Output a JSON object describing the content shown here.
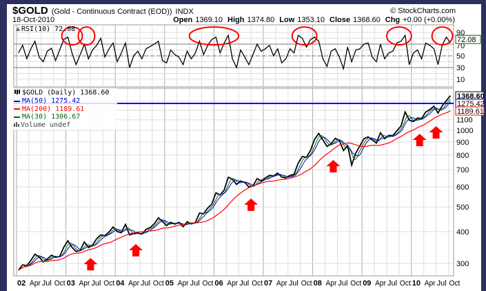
{
  "header": {
    "symbol": "$GOLD",
    "description": "(Gold - Continuous Contract (EOD))",
    "exchange": "INDX",
    "date": "18-Oct-2010",
    "copyright": "© StockCharts.com",
    "open_label": "Open",
    "open": "1369.10",
    "high_label": "High",
    "high": "1374.80",
    "low_label": "Low",
    "low": "1353.10",
    "close_label": "Close",
    "close": "1368.60",
    "chg_label": "Chg",
    "chg": "+0.00 (+0.00%)"
  },
  "chart_data": [
    {
      "type": "line",
      "panel": "indicator",
      "legend": "RSI(10) 72.08",
      "last_value_label": "72.08",
      "ylim": [
        0,
        100
      ],
      "yticks": [
        "90",
        "70",
        "50",
        "30",
        "10"
      ],
      "reference_lines": [
        70,
        50,
        30
      ],
      "x_start": "2002-01",
      "x_end": "2010-10",
      "values": [
        55,
        68,
        45,
        62,
        75,
        48,
        40,
        58,
        63,
        42,
        60,
        78,
        82,
        55,
        35,
        52,
        70,
        45,
        60,
        68,
        80,
        48,
        62,
        72,
        40,
        55,
        72,
        30,
        50,
        58,
        45,
        62,
        66,
        70,
        75,
        42,
        38,
        60,
        52,
        48,
        35,
        58,
        45,
        55,
        75,
        52,
        68,
        78,
        82,
        55,
        72,
        85,
        45,
        30,
        60,
        48,
        35,
        52,
        70,
        58,
        62,
        68,
        50,
        62,
        38,
        45,
        62,
        55,
        85,
        80,
        65,
        78,
        82,
        75,
        45,
        32,
        58,
        62,
        48,
        28,
        65,
        40,
        60,
        62,
        70,
        72,
        48,
        40,
        70,
        45,
        55,
        58,
        72,
        75,
        85,
        35,
        55,
        60,
        45,
        72,
        68,
        62,
        35,
        68,
        82,
        72
      ],
      "highlight_ellipses": [
        {
          "from": "2002-12",
          "to": "2003-04"
        },
        {
          "from": "2003-04",
          "to": "2003-07"
        },
        {
          "from": "2005-07",
          "to": "2006-06"
        },
        {
          "from": "2007-08",
          "to": "2008-01"
        },
        {
          "from": "2009-07",
          "to": "2009-12"
        },
        {
          "from": "2010-06",
          "to": "2010-10"
        }
      ],
      "ellipse_color": "#ff0000"
    },
    {
      "type": "line",
      "panel": "price",
      "scale": "log",
      "legend": [
        {
          "name": "$GOLD (Daily) 1368.60",
          "color": "#000000"
        },
        {
          "name": "MA(50) 1275.42",
          "color": "#0000cc",
          "window_days": 50
        },
        {
          "name": "MA(200) 1189.61",
          "color": "#ff0000",
          "window_days": 200
        },
        {
          "name": "MA(30) 1306.67",
          "color": "#006600",
          "window_days": 30
        },
        {
          "name": "Volume undef",
          "color": "#555555"
        }
      ],
      "last_labels": [
        {
          "value": "1368.60",
          "color": "#000000"
        },
        {
          "value": "1275.42",
          "color": "#0000cc"
        },
        {
          "value": "1189.61",
          "color": "#ff0000"
        }
      ],
      "horizontal_line": {
        "value": 1275.42,
        "color": "#0000ff"
      },
      "ylim": [
        265,
        1420
      ],
      "yticks": [
        "1100",
        "1000",
        "900",
        "800",
        "700",
        "600",
        "500",
        "400",
        "300"
      ],
      "x_start": "2002-01",
      "x_end": "2010-10",
      "monthly_close": [
        282,
        296,
        294,
        308,
        326,
        318,
        304,
        312,
        323,
        317,
        319,
        347,
        368,
        347,
        334,
        337,
        364,
        346,
        354,
        375,
        388,
        386,
        398,
        417,
        400,
        396,
        427,
        388,
        393,
        395,
        391,
        408,
        415,
        429,
        453,
        438,
        422,
        435,
        428,
        435,
        418,
        437,
        429,
        434,
        473,
        470,
        495,
        513,
        568,
        557,
        582,
        654,
        643,
        613,
        632,
        624,
        599,
        604,
        646,
        632,
        650,
        665,
        662,
        679,
        655,
        650,
        665,
        672,
        743,
        789,
        783,
        834,
        923,
        972,
        916,
        865,
        885,
        930,
        912,
        833,
        870,
        730,
        814,
        869,
        927,
        942,
        917,
        891,
        978,
        927,
        955,
        954,
        996,
        1040,
        1181,
        1096,
        1083,
        1118,
        1113,
        1180,
        1207,
        1244,
        1169,
        1247,
        1307,
        1368.6
      ],
      "support_arrows": [
        {
          "date": "2003-07",
          "price": 327
        },
        {
          "date": "2004-06",
          "price": 371
        },
        {
          "date": "2006-10",
          "price": 560
        },
        {
          "date": "2008-06",
          "price": 794
        },
        {
          "date": "2010-03",
          "price": 1006
        },
        {
          "date": "2010-07",
          "price": 1078
        }
      ],
      "arrow_color": "#ff0000"
    }
  ],
  "xaxis": {
    "labels": [
      {
        "text": "02",
        "year": true
      },
      {
        "text": "Apr"
      },
      {
        "text": "Jul"
      },
      {
        "text": "Oct"
      },
      {
        "text": "03",
        "year": true
      },
      {
        "text": "Apr"
      },
      {
        "text": "Jul"
      },
      {
        "text": "Oct"
      },
      {
        "text": "04",
        "year": true
      },
      {
        "text": "Apr"
      },
      {
        "text": "Jul"
      },
      {
        "text": "Oct"
      },
      {
        "text": "05",
        "year": true
      },
      {
        "text": "Apr"
      },
      {
        "text": "Jul"
      },
      {
        "text": "Oct"
      },
      {
        "text": "06",
        "year": true
      },
      {
        "text": "Apr"
      },
      {
        "text": "Jul"
      },
      {
        "text": "Oct"
      },
      {
        "text": "07",
        "year": true
      },
      {
        "text": "Apr"
      },
      {
        "text": "Jul"
      },
      {
        "text": "Oct"
      },
      {
        "text": "08",
        "year": true
      },
      {
        "text": "Apr"
      },
      {
        "text": "Jul"
      },
      {
        "text": "Oct"
      },
      {
        "text": "09",
        "year": true
      },
      {
        "text": "Apr"
      },
      {
        "text": "Jul"
      },
      {
        "text": "Oct"
      },
      {
        "text": "10",
        "year": true
      },
      {
        "text": "Apr"
      },
      {
        "text": "Jul"
      },
      {
        "text": "Oct"
      }
    ]
  }
}
